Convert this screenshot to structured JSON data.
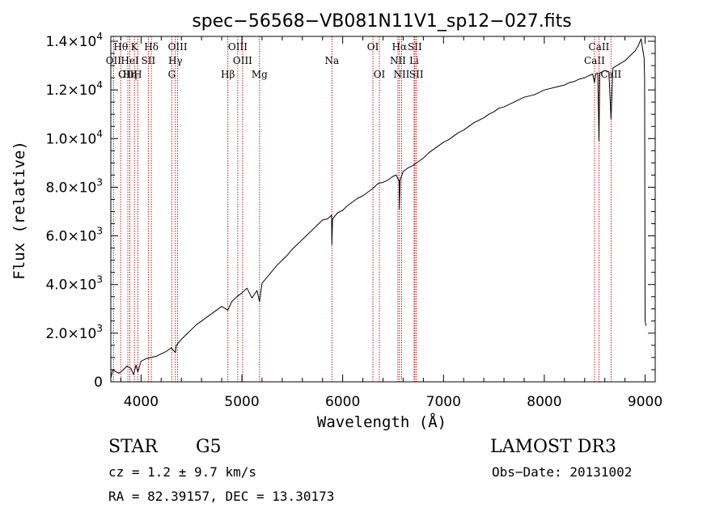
{
  "chart_data": {
    "type": "line",
    "title": "spec−56568−VB081N11V1_sp12−027.fits",
    "xlabel": "Wavelength (Å)",
    "ylabel": "Flux (relative)",
    "xlim": [
      3700,
      9100
    ],
    "ylim": [
      0,
      14200
    ],
    "x_ticks": [
      {
        "value": 4000,
        "label": "4000"
      },
      {
        "value": 5000,
        "label": "5000"
      },
      {
        "value": 6000,
        "label": "6000"
      },
      {
        "value": 7000,
        "label": "7000"
      },
      {
        "value": 8000,
        "label": "8000"
      },
      {
        "value": 9000,
        "label": "9000"
      }
    ],
    "y_ticks": [
      {
        "value": 0,
        "mant": "0",
        "exp": ""
      },
      {
        "value": 2000,
        "mant": "2.0×10",
        "exp": "3"
      },
      {
        "value": 4000,
        "mant": "4.0×10",
        "exp": "3"
      },
      {
        "value": 6000,
        "mant": "6.0×10",
        "exp": "3"
      },
      {
        "value": 8000,
        "mant": "8.0×10",
        "exp": "3"
      },
      {
        "value": 10000,
        "mant": "1.0×10",
        "exp": "4"
      },
      {
        "value": 12000,
        "mant": "1.2×10",
        "exp": "4"
      },
      {
        "value": 14000,
        "mant": "1.4×10",
        "exp": "4"
      }
    ],
    "series": [
      {
        "name": "flux",
        "x": [
          3700,
          3720,
          3750,
          3780,
          3820,
          3860,
          3900,
          3925,
          3935,
          3950,
          3968,
          3985,
          4000,
          4050,
          4101,
          4150,
          4200,
          4250,
          4300,
          4340,
          4350,
          4400,
          4450,
          4500,
          4550,
          4600,
          4650,
          4700,
          4750,
          4800,
          4861,
          4900,
          4950,
          5000,
          5050,
          5100,
          5150,
          5175,
          5200,
          5250,
          5300,
          5350,
          5400,
          5450,
          5500,
          5550,
          5600,
          5650,
          5700,
          5750,
          5800,
          5850,
          5890,
          5893,
          5900,
          5950,
          6000,
          6050,
          6100,
          6150,
          6200,
          6250,
          6300,
          6350,
          6400,
          6450,
          6500,
          6530,
          6560,
          6563,
          6570,
          6600,
          6650,
          6700,
          6750,
          6800,
          6850,
          6900,
          6950,
          7000,
          7050,
          7100,
          7150,
          7200,
          7250,
          7300,
          7350,
          7400,
          7450,
          7500,
          7550,
          7600,
          7650,
          7700,
          7750,
          7800,
          7850,
          7900,
          7950,
          8000,
          8050,
          8100,
          8150,
          8200,
          8250,
          8300,
          8350,
          8400,
          8450,
          8480,
          8498,
          8510,
          8530,
          8542,
          8550,
          8580,
          8600,
          8640,
          8662,
          8680,
          8720,
          8760,
          8800,
          8850,
          8900,
          8930,
          8960,
          8975,
          8990,
          8995,
          9000,
          9010
        ],
        "y": [
          150,
          500,
          420,
          350,
          480,
          650,
          550,
          300,
          450,
          700,
          400,
          650,
          850,
          950,
          1000,
          1050,
          1150,
          1250,
          1400,
          1200,
          1500,
          1750,
          1950,
          2150,
          2350,
          2500,
          2650,
          2800,
          2950,
          3100,
          2950,
          3300,
          3500,
          3650,
          3850,
          3450,
          3750,
          3300,
          4050,
          4300,
          4550,
          4800,
          5000,
          5200,
          5450,
          5650,
          5850,
          6050,
          6250,
          6450,
          6650,
          6700,
          6850,
          5650,
          6700,
          6950,
          7050,
          7250,
          7400,
          7550,
          7650,
          7800,
          7950,
          8150,
          8200,
          8300,
          8450,
          8500,
          8250,
          7100,
          8300,
          8650,
          8800,
          8900,
          9050,
          9200,
          9400,
          9550,
          9700,
          9850,
          9950,
          10100,
          10250,
          10350,
          10500,
          10650,
          10750,
          10850,
          11000,
          11100,
          11250,
          11300,
          11400,
          11500,
          11600,
          11700,
          11750,
          11800,
          11900,
          12000,
          12050,
          12100,
          12150,
          12200,
          12300,
          12350,
          12450,
          12500,
          12600,
          12650,
          12300,
          12650,
          12700,
          9900,
          12700,
          12750,
          12800,
          12750,
          10800,
          12900,
          13000,
          13100,
          13200,
          13400,
          13600,
          13800,
          14100,
          13700,
          13300,
          12500,
          2500,
          2300
        ]
      }
    ],
    "lines": [
      {
        "name": "Hθ",
        "wave": 3798,
        "row": 1
      },
      {
        "name": "OII",
        "wave": 3727,
        "row": 2
      },
      {
        "name": "OIII",
        "wave": 3869,
        "row": 3
      },
      {
        "name": "Hη",
        "wave": 3889,
        "row": 3
      },
      {
        "name": "HeI",
        "wave": 3889,
        "row": 2
      },
      {
        "name": "K",
        "wave": 3934,
        "row": 1
      },
      {
        "name": "H",
        "wave": 3968,
        "row": 3
      },
      {
        "name": "SII",
        "wave": 4072,
        "row": 2
      },
      {
        "name": "Hδ",
        "wave": 4102,
        "row": 1
      },
      {
        "name": "OIII",
        "wave": 4363,
        "row": 1
      },
      {
        "name": "Hγ",
        "wave": 4340,
        "row": 2
      },
      {
        "name": "G",
        "wave": 4305,
        "row": 3
      },
      {
        "name": "OIII",
        "wave": 4959,
        "row": 1
      },
      {
        "name": "OIII",
        "wave": 5007,
        "row": 2
      },
      {
        "name": "Hβ",
        "wave": 4861,
        "row": 3
      },
      {
        "name": "Mg",
        "wave": 5175,
        "row": 3
      },
      {
        "name": "Na",
        "wave": 5893,
        "row": 2
      },
      {
        "name": "OI",
        "wave": 6300,
        "row": 1
      },
      {
        "name": "OI",
        "wave": 6364,
        "row": 3
      },
      {
        "name": "Hα",
        "wave": 6563,
        "row": 1
      },
      {
        "name": "NII",
        "wave": 6548,
        "row": 2
      },
      {
        "name": "NII",
        "wave": 6584,
        "row": 3
      },
      {
        "name": "SII",
        "wave": 6716,
        "row": 1
      },
      {
        "name": "Li",
        "wave": 6708,
        "row": 2
      },
      {
        "name": "SII",
        "wave": 6731,
        "row": 3
      },
      {
        "name": "CaII",
        "wave": 8498,
        "row": 2
      },
      {
        "name": "CaII",
        "wave": 8542,
        "row": 1
      },
      {
        "name": "CaII",
        "wave": 8662,
        "row": 3
      }
    ],
    "colors": {
      "spectrum": "#000000",
      "line_marker": "#cc0000"
    }
  },
  "info": {
    "object_class": "STAR",
    "subclass": "G5",
    "survey": "LAMOST DR3",
    "cz": "cz = 1.2 ± 9.7 km/s",
    "obs_date": "Obs−Date: 20131002",
    "coords": "RA =  82.39157, DEC =  13.30173"
  }
}
